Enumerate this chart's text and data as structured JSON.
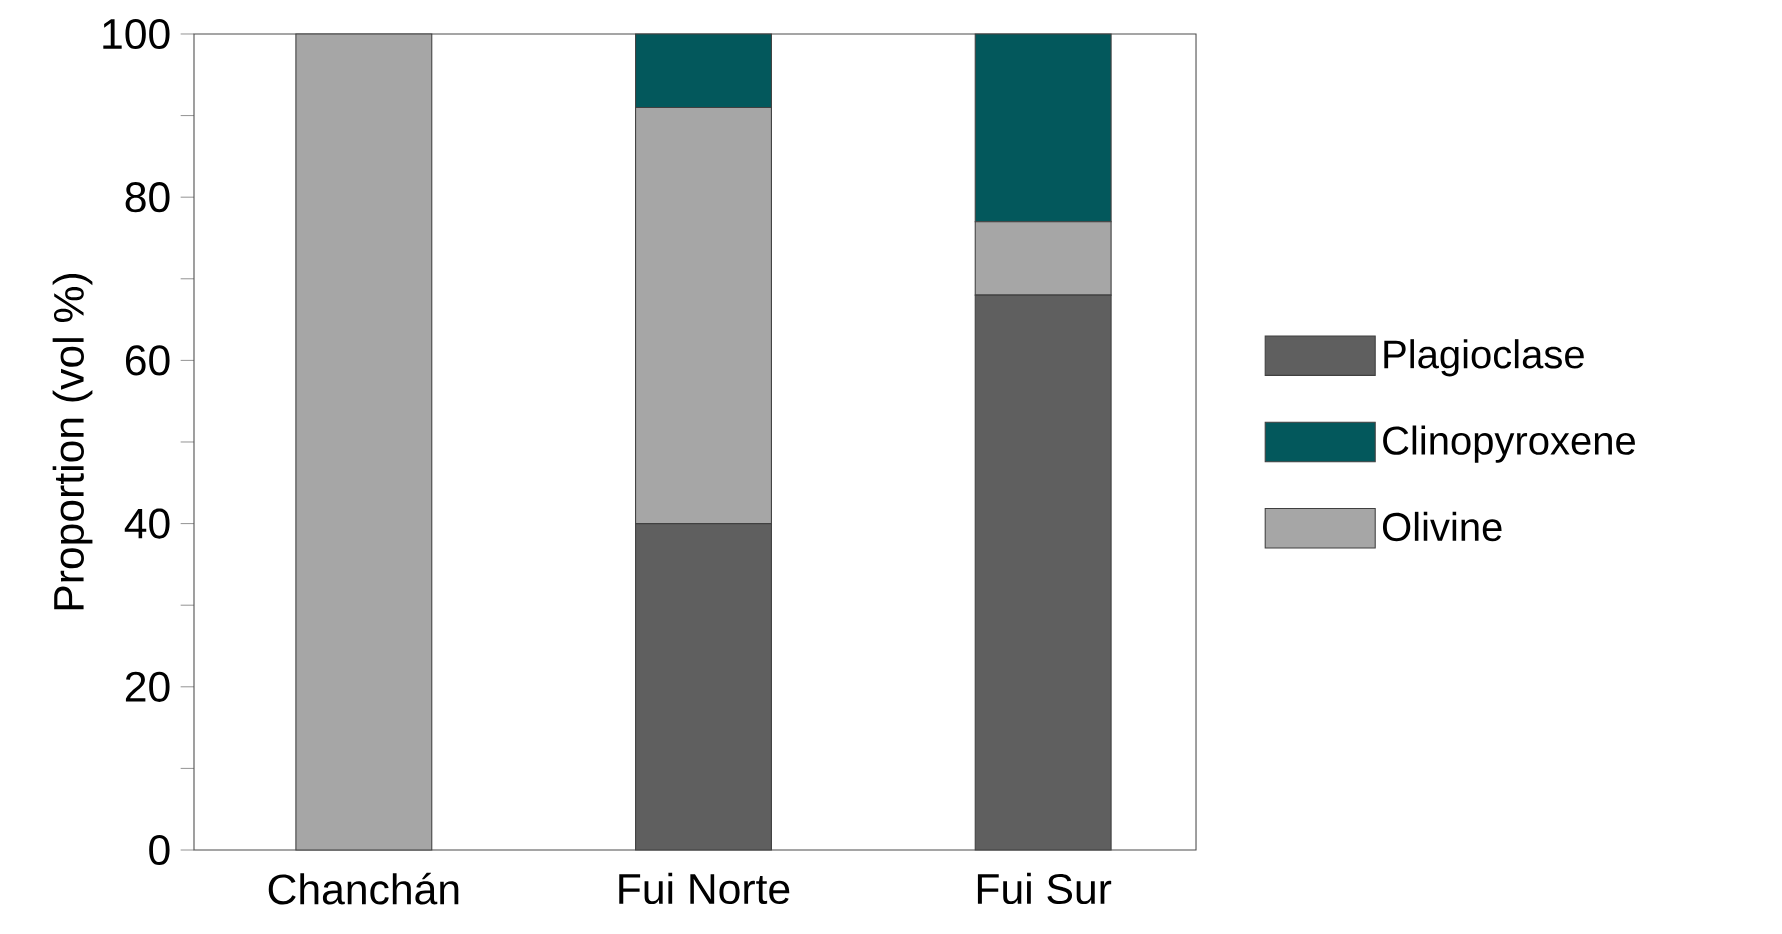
{
  "chart_data": {
    "type": "bar",
    "stacked": true,
    "ylabel": "Proportion (vol %)",
    "categories": [
      "Chanchán",
      "Fui Norte",
      "Fui Sur"
    ],
    "series": [
      {
        "name": "Plagioclase",
        "color": "#5f5f5f",
        "values": [
          0,
          40,
          68
        ]
      },
      {
        "name": "Olivine",
        "color": "#a6a6a6",
        "values": [
          100,
          51,
          9
        ]
      },
      {
        "name": "Clinopyroxene",
        "color": "#03585c",
        "values": [
          0,
          9,
          23
        ]
      }
    ],
    "ylim": [
      0,
      100
    ],
    "yticks": [
      0,
      {
        "value": 10,
        "label": null
      },
      20,
      {
        "value": 30,
        "label": null
      },
      40,
      {
        "value": 50,
        "label": null
      },
      60,
      {
        "value": 70,
        "label": null
      },
      80,
      {
        "value": 90,
        "label": null
      },
      100
    ],
    "legend": "right",
    "grid": false
  }
}
